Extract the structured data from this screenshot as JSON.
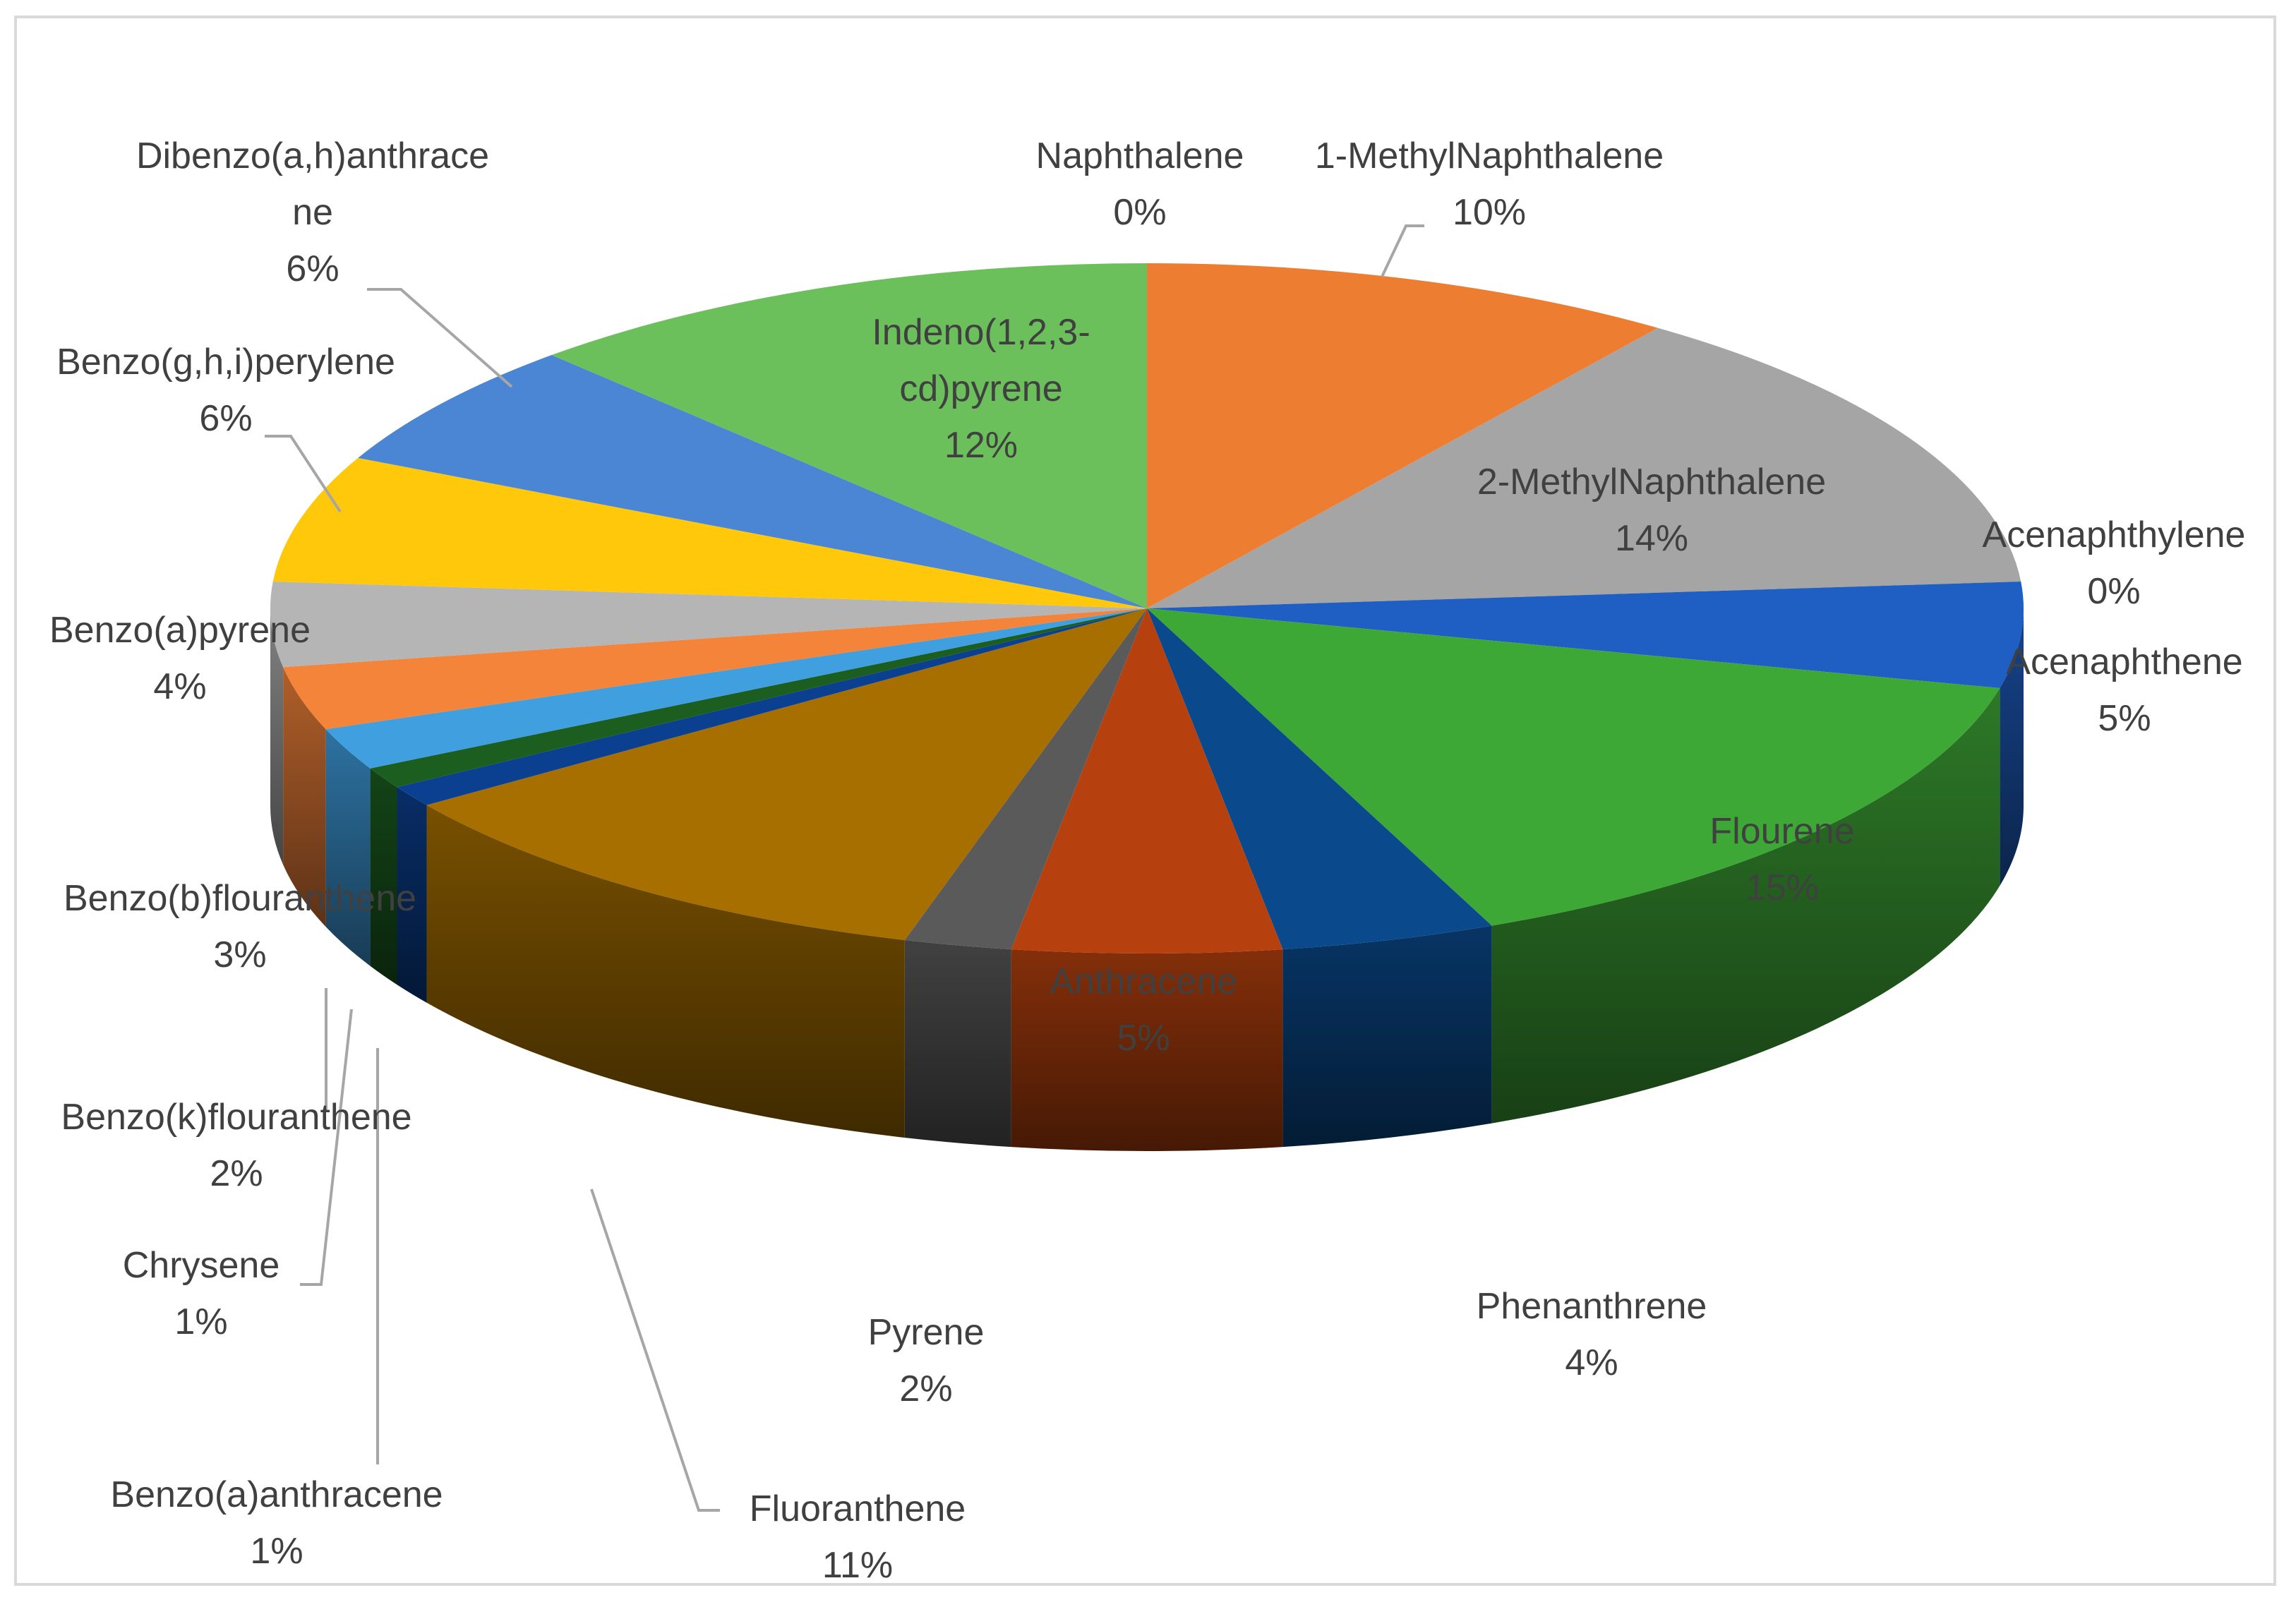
{
  "chart_data": {
    "type": "pie",
    "title": "",
    "style": "3d-exploded-none",
    "unit": "%",
    "slices": [
      {
        "name": "Naphthalene",
        "value": 0,
        "label": "0%",
        "color": "#4472c4"
      },
      {
        "name": "1-MethylNaphthalene",
        "value": 10,
        "label": "10%",
        "color": "#ed7d31"
      },
      {
        "name": "2-MethylNaphthalene",
        "value": 14,
        "label": "14%",
        "color": "#a5a5a5"
      },
      {
        "name": "Acenaphthylene",
        "value": 0,
        "label": "0%",
        "color": "#ffc000"
      },
      {
        "name": "Acenaphthene",
        "value": 5,
        "label": "5%",
        "color": "#1f5fc4"
      },
      {
        "name": "Flourene",
        "value": 15,
        "label": "15%",
        "color": "#3ea836"
      },
      {
        "name": "Phenanthrene",
        "value": 4,
        "label": "4%",
        "color": "#0a4a8c"
      },
      {
        "name": "Anthracene",
        "value": 5,
        "label": "5%",
        "color": "#b7410e"
      },
      {
        "name": "Pyrene",
        "value": 2,
        "label": "2%",
        "color": "#5a5a5a"
      },
      {
        "name": "Fluoranthene",
        "value": 11,
        "label": "11%",
        "color": "#a66f00"
      },
      {
        "name": "Benzo(a)anthracene",
        "value": 1,
        "label": "1%",
        "color": "#0b3f8f"
      },
      {
        "name": "Chrysene",
        "value": 1,
        "label": "1%",
        "color": "#1b5e20"
      },
      {
        "name": "Benzo(k)flouranthene",
        "value": 2,
        "label": "2%",
        "color": "#3f9fdf"
      },
      {
        "name": "Benzo(b)flouranthene",
        "value": 3,
        "label": "3%",
        "color": "#f4843a"
      },
      {
        "name": "Benzo(a)pyrene",
        "value": 4,
        "label": "4%",
        "color": "#b5b5b5"
      },
      {
        "name": "Benzo(g,h,i)perylene",
        "value": 6,
        "label": "6%",
        "color": "#ffc80a"
      },
      {
        "name": "Dibenzo(a,h)anthracene",
        "value": 6,
        "label": "6%",
        "color": "#4a86d4"
      },
      {
        "name": "Indeno(1,2,3-cd)pyrene",
        "value": 12,
        "label": "12%",
        "color": "#6cc05c"
      }
    ],
    "label_lines": {
      "Naphthalene": [
        "Naphthalene",
        "0%"
      ],
      "1-MethylNaphthalene": [
        "1-MethylNaphthalene",
        "10%"
      ],
      "2-MethylNaphthalene": [
        "2-MethylNaphthalene",
        "14%"
      ],
      "Acenaphthylene": [
        "Acenaphthylene",
        "0%"
      ],
      "Acenaphthene": [
        "Acenaphthene",
        "5%"
      ],
      "Flourene": [
        "Flourene",
        "15%"
      ],
      "Phenanthrene": [
        "Phenanthrene",
        "4%"
      ],
      "Anthracene": [
        "Anthracene",
        "5%"
      ],
      "Pyrene": [
        "Pyrene",
        "2%"
      ],
      "Fluoranthene": [
        "Fluoranthene",
        "11%"
      ],
      "Benzo(a)anthracene": [
        "Benzo(a)anthracene",
        "1%"
      ],
      "Chrysene": [
        "Chrysene",
        "1%"
      ],
      "Benzo(k)flouranthene": [
        "Benzo(k)flouranthene",
        "2%"
      ],
      "Benzo(b)flouranthene": [
        "Benzo(b)flouranthene",
        "3%"
      ],
      "Benzo(a)pyrene": [
        "Benzo(a)pyrene",
        "4%"
      ],
      "Benzo(g,h,i)perylene": [
        "Benzo(g,h,i)perylene",
        "6%"
      ],
      "Dibenzo(a,h)anthracene": [
        "Dibenzo(a,h)anthrace",
        "ne",
        "6%"
      ],
      "Indeno(1,2,3-cd)pyrene": [
        "Indeno(1,2,3-",
        "cd)pyrene",
        "12%"
      ]
    }
  }
}
